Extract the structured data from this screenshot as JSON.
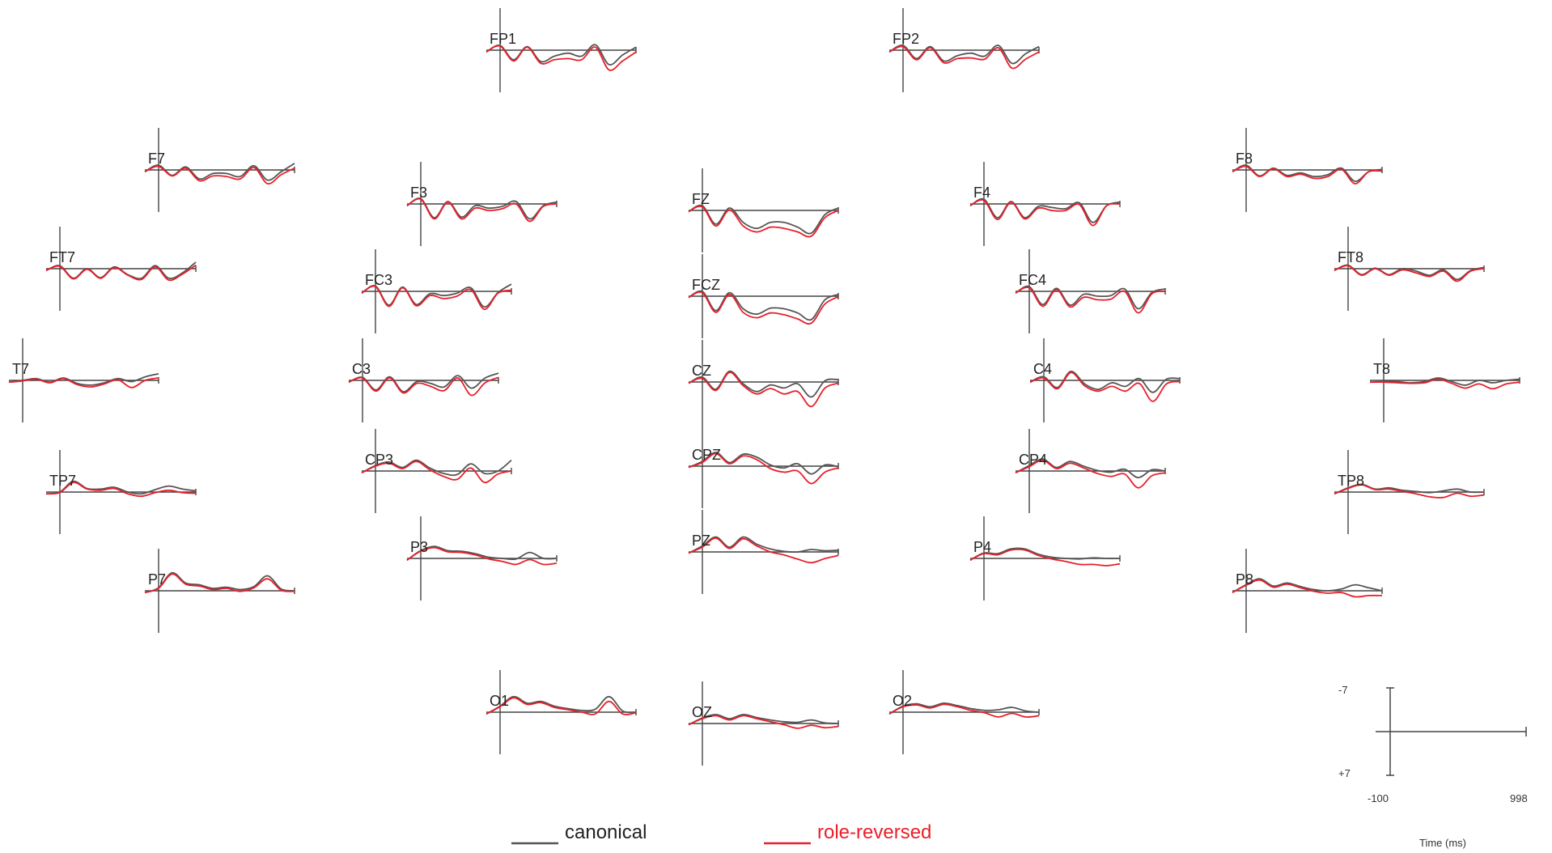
{
  "chart_data": {
    "type": "line",
    "title": "",
    "xlabel": "Time (ms)",
    "ylabel": "",
    "y_axis_inverted": true,
    "x_range": [
      -100,
      998
    ],
    "y_range": [
      -7,
      7
    ],
    "scale_bar": {
      "x_min_label": "-100",
      "x_max_label": "998",
      "y_neg_label": "-7",
      "y_pos_label": "+7",
      "x_title": "Time (ms)"
    },
    "legend": {
      "position": "bottom-center"
    },
    "series_styles": [
      {
        "name": "canonical",
        "color": "#555555"
      },
      {
        "name": "role-reversed",
        "color": "#e8202a"
      }
    ],
    "times": [
      -100,
      0,
      100,
      200,
      300,
      400,
      500,
      600,
      700,
      800,
      900,
      998
    ],
    "panels": [
      {
        "label": "FP1",
        "canonical": [
          0.3,
          -0.8,
          1.6,
          -0.6,
          1.9,
          1.0,
          0.5,
          1.0,
          -0.9,
          2.4,
          0.8,
          -0.5
        ],
        "role_reversed": [
          0.3,
          -0.7,
          1.8,
          -0.5,
          2.2,
          1.6,
          1.4,
          1.6,
          -0.5,
          3.3,
          1.8,
          0.3
        ]
      },
      {
        "label": "FP2",
        "canonical": [
          0.3,
          -0.8,
          1.4,
          -0.6,
          1.8,
          0.9,
          0.5,
          1.0,
          -0.8,
          2.2,
          0.6,
          -0.6
        ],
        "role_reversed": [
          0.3,
          -0.6,
          1.6,
          -0.4,
          2.1,
          1.4,
          1.3,
          1.5,
          -0.4,
          3.0,
          1.5,
          0.3
        ]
      },
      {
        "label": "F7",
        "canonical": [
          0.3,
          -0.8,
          0.9,
          -0.5,
          1.5,
          0.6,
          0.6,
          1.1,
          -0.7,
          1.7,
          0.3,
          -1.1
        ],
        "role_reversed": [
          0.3,
          -0.6,
          1.0,
          -0.3,
          1.8,
          1.0,
          1.1,
          1.5,
          -0.4,
          2.3,
          0.8,
          -0.3
        ]
      },
      {
        "label": "F3",
        "canonical": [
          0.3,
          -0.9,
          2.3,
          -0.4,
          2.2,
          0.3,
          0.7,
          0.4,
          -0.4,
          2.5,
          0.3,
          -0.3
        ],
        "role_reversed": [
          0.3,
          -0.8,
          2.5,
          -0.3,
          2.5,
          0.7,
          1.1,
          0.8,
          0.0,
          2.9,
          0.4,
          0.0
        ]
      },
      {
        "label": "FZ",
        "canonical": [
          0.2,
          -0.8,
          2.3,
          -0.4,
          2.0,
          3.0,
          2.0,
          2.0,
          2.8,
          3.8,
          0.7,
          -0.4
        ],
        "role_reversed": [
          0.2,
          -0.6,
          2.6,
          -0.1,
          2.6,
          3.6,
          2.8,
          3.0,
          3.6,
          4.3,
          1.2,
          0.0
        ]
      },
      {
        "label": "F4",
        "canonical": [
          0.3,
          -0.8,
          2.3,
          -0.4,
          2.3,
          0.4,
          0.6,
          0.8,
          -0.2,
          3.1,
          0.3,
          -0.3
        ],
        "role_reversed": [
          0.3,
          -0.6,
          2.6,
          -0.3,
          2.5,
          0.7,
          1.1,
          1.1,
          0.1,
          3.6,
          0.3,
          0.0
        ]
      },
      {
        "label": "F8",
        "canonical": [
          0.3,
          -0.8,
          1.0,
          -0.3,
          0.9,
          0.5,
          1.1,
          0.8,
          -0.3,
          1.9,
          0.3,
          -0.1
        ],
        "role_reversed": [
          0.3,
          -0.6,
          1.1,
          -0.2,
          1.1,
          0.7,
          1.4,
          1.1,
          -0.1,
          2.3,
          0.3,
          0.2
        ]
      },
      {
        "label": "FT7",
        "canonical": [
          0.3,
          -0.5,
          1.6,
          0.0,
          1.5,
          -0.3,
          1.0,
          1.6,
          -0.5,
          1.6,
          0.7,
          -1.1
        ],
        "role_reversed": [
          0.3,
          -0.4,
          1.7,
          0.1,
          1.6,
          -0.2,
          1.1,
          1.8,
          -0.3,
          1.9,
          0.9,
          -0.6
        ]
      },
      {
        "label": "FC3",
        "canonical": [
          0.3,
          -0.9,
          2.3,
          -0.7,
          2.2,
          0.4,
          0.7,
          0.3,
          -0.6,
          2.6,
          0.2,
          -1.2
        ],
        "role_reversed": [
          0.3,
          -0.8,
          2.5,
          -0.6,
          2.4,
          0.7,
          1.2,
          0.8,
          -0.3,
          3.0,
          0.3,
          -0.2
        ]
      },
      {
        "label": "FCZ",
        "canonical": [
          0.2,
          -0.8,
          2.4,
          -0.6,
          2.1,
          3.0,
          2.0,
          2.1,
          2.8,
          3.9,
          0.6,
          -0.3
        ],
        "role_reversed": [
          0.2,
          -0.6,
          2.7,
          -0.3,
          2.7,
          3.6,
          2.8,
          3.1,
          3.8,
          4.5,
          1.3,
          0.1
        ]
      },
      {
        "label": "FC4",
        "canonical": [
          0.3,
          -0.8,
          2.2,
          -0.5,
          2.3,
          0.5,
          0.8,
          0.7,
          -0.4,
          2.9,
          0.2,
          -0.4
        ],
        "role_reversed": [
          0.3,
          -0.6,
          2.5,
          -0.3,
          2.6,
          1.0,
          1.4,
          1.3,
          0.0,
          3.6,
          0.4,
          0.0
        ]
      },
      {
        "label": "FT8",
        "canonical": [
          0.3,
          -0.6,
          1.0,
          -0.1,
          1.0,
          0.0,
          0.4,
          1.1,
          0.2,
          1.8,
          0.3,
          -0.2
        ],
        "role_reversed": [
          0.3,
          -0.5,
          1.1,
          0.0,
          1.1,
          0.2,
          0.7,
          1.3,
          0.4,
          2.1,
          0.4,
          0.0
        ]
      },
      {
        "label": "T7",
        "canonical": [
          0.3,
          0.0,
          -0.3,
          0.3,
          -0.4,
          0.5,
          0.8,
          0.4,
          -0.3,
          0.2,
          -0.6,
          -1.1
        ],
        "role_reversed": [
          0.3,
          0.1,
          -0.2,
          0.4,
          -0.3,
          0.7,
          1.1,
          0.6,
          -0.1,
          1.2,
          0.0,
          -0.4
        ]
      },
      {
        "label": "C3",
        "canonical": [
          0.3,
          -0.5,
          1.6,
          -0.6,
          1.9,
          0.2,
          0.5,
          1.1,
          -0.8,
          1.3,
          -0.4,
          -1.2
        ],
        "role_reversed": [
          0.3,
          -0.4,
          1.8,
          -0.4,
          2.1,
          0.5,
          1.0,
          1.7,
          -0.4,
          2.5,
          0.4,
          -0.5
        ]
      },
      {
        "label": "CZ",
        "canonical": [
          0.2,
          -0.8,
          1.2,
          -1.8,
          0.3,
          1.6,
          0.5,
          1.0,
          0.3,
          2.5,
          -0.2,
          -0.4
        ],
        "role_reversed": [
          0.2,
          -0.6,
          1.4,
          -1.6,
          0.6,
          2.0,
          1.1,
          2.0,
          1.6,
          4.1,
          1.0,
          0.2
        ]
      },
      {
        "label": "C4",
        "canonical": [
          0.3,
          -0.6,
          1.2,
          -1.5,
          0.6,
          1.5,
          0.4,
          1.0,
          -0.3,
          2.0,
          -0.2,
          -0.3
        ],
        "role_reversed": [
          0.3,
          -0.4,
          1.4,
          -1.3,
          0.9,
          1.8,
          1.0,
          1.8,
          0.5,
          3.5,
          0.6,
          0.2
        ]
      },
      {
        "label": "T8",
        "canonical": [
          0.3,
          0.2,
          0.2,
          0.4,
          0.2,
          -0.4,
          0.2,
          0.8,
          0.0,
          0.4,
          0.0,
          -0.2
        ],
        "role_reversed": [
          0.3,
          0.3,
          0.4,
          0.5,
          0.4,
          -0.2,
          0.5,
          1.3,
          0.6,
          1.4,
          0.6,
          0.3
        ]
      },
      {
        "label": "TP7",
        "canonical": [
          0.3,
          0.0,
          -1.8,
          -0.6,
          -0.5,
          -0.8,
          0.0,
          0.3,
          -0.4,
          -1.0,
          -0.5,
          -0.2
        ],
        "role_reversed": [
          0.3,
          0.1,
          -1.6,
          -0.5,
          -0.3,
          -0.6,
          0.3,
          0.7,
          0.1,
          -0.3,
          0.1,
          0.2
        ]
      },
      {
        "label": "CP3",
        "canonical": [
          0.3,
          -0.9,
          -1.5,
          -0.6,
          -1.8,
          -0.5,
          0.4,
          0.6,
          -1.2,
          0.4,
          0.0,
          -1.8
        ],
        "role_reversed": [
          0.3,
          -0.8,
          -1.3,
          -0.4,
          -1.6,
          -0.2,
          0.9,
          1.4,
          -0.5,
          1.9,
          0.5,
          0.0
        ]
      },
      {
        "label": "CPZ",
        "canonical": [
          0.2,
          -0.8,
          -2.3,
          -0.6,
          -2.0,
          -1.5,
          -0.2,
          0.3,
          -0.4,
          1.3,
          -0.2,
          0.1
        ],
        "role_reversed": [
          0.2,
          -0.6,
          -2.1,
          -0.4,
          -1.7,
          -1.1,
          0.4,
          1.0,
          0.8,
          2.9,
          1.0,
          0.3
        ]
      },
      {
        "label": "CP4",
        "canonical": [
          0.3,
          -0.9,
          -2.0,
          -0.6,
          -1.6,
          -0.8,
          -0.1,
          0.2,
          -0.3,
          1.1,
          -0.2,
          0.0
        ],
        "role_reversed": [
          0.3,
          -0.7,
          -1.8,
          -0.4,
          -1.3,
          -0.5,
          0.4,
          0.9,
          0.5,
          2.8,
          0.8,
          0.3
        ]
      },
      {
        "label": "TP8",
        "canonical": [
          0.3,
          -0.7,
          -1.3,
          -0.5,
          -0.7,
          -0.3,
          -0.1,
          0.1,
          -0.2,
          -0.5,
          0.0,
          0.0
        ],
        "role_reversed": [
          0.3,
          -0.6,
          -1.2,
          -0.4,
          -0.5,
          -0.1,
          0.3,
          0.8,
          0.9,
          0.2,
          0.7,
          0.5
        ]
      },
      {
        "label": "P7",
        "canonical": [
          0.3,
          -0.5,
          -3.0,
          -1.3,
          -1.0,
          -0.4,
          -0.6,
          -0.2,
          -0.7,
          -2.5,
          -0.3,
          0.0
        ],
        "role_reversed": [
          0.3,
          -0.4,
          -2.8,
          -1.1,
          -0.8,
          -0.2,
          -0.4,
          0.1,
          -0.5,
          -2.0,
          -0.1,
          0.1
        ]
      },
      {
        "label": "P3",
        "canonical": [
          0.3,
          -1.3,
          -2.0,
          -1.3,
          -1.2,
          -0.8,
          -0.2,
          0.0,
          0.1,
          -1.0,
          0.0,
          0.0
        ],
        "role_reversed": [
          0.3,
          -1.2,
          -1.8,
          -1.1,
          -1.0,
          -0.6,
          0.1,
          0.5,
          1.0,
          0.2,
          1.0,
          0.8
        ]
      },
      {
        "label": "PZ",
        "canonical": [
          0.2,
          -1.0,
          -2.5,
          -0.8,
          -2.5,
          -1.3,
          -0.5,
          -0.1,
          0.0,
          -0.4,
          -0.2,
          -0.3
        ],
        "role_reversed": [
          0.2,
          -0.8,
          -2.3,
          -0.6,
          -2.2,
          -1.0,
          0.0,
          0.5,
          1.2,
          1.8,
          1.1,
          0.6
        ]
      },
      {
        "label": "P4",
        "canonical": [
          0.3,
          -0.9,
          -0.8,
          -1.6,
          -1.6,
          -0.7,
          -0.2,
          0.0,
          0.1,
          -0.1,
          0.0,
          0.0
        ],
        "role_reversed": [
          0.3,
          -0.8,
          -0.6,
          -1.4,
          -1.4,
          -0.5,
          0.1,
          0.5,
          1.0,
          1.0,
          1.2,
          0.9
        ]
      },
      {
        "label": "P8",
        "canonical": [
          0.3,
          -1.0,
          -2.0,
          -0.8,
          -1.3,
          -0.7,
          -0.2,
          0.0,
          -0.3,
          -1.0,
          -0.5,
          0.0
        ],
        "role_reversed": [
          0.3,
          -0.9,
          -1.8,
          -0.6,
          -1.1,
          -0.5,
          0.1,
          0.4,
          0.3,
          1.0,
          0.8,
          0.8
        ]
      },
      {
        "label": "O1",
        "canonical": [
          0.3,
          -1.0,
          -2.6,
          -1.5,
          -1.8,
          -1.0,
          -0.6,
          -0.3,
          -0.5,
          -2.6,
          -0.2,
          0.0
        ],
        "role_reversed": [
          0.3,
          -0.9,
          -2.4,
          -1.3,
          -1.6,
          -0.8,
          -0.4,
          0.0,
          0.3,
          -1.8,
          0.3,
          0.1
        ]
      },
      {
        "label": "OZ",
        "canonical": [
          0.2,
          -0.9,
          -1.5,
          -0.8,
          -1.5,
          -1.0,
          -0.6,
          -0.3,
          -0.2,
          -0.6,
          -0.1,
          0.0
        ],
        "role_reversed": [
          0.2,
          -0.8,
          -1.3,
          -0.6,
          -1.3,
          -0.8,
          -0.3,
          0.2,
          0.8,
          0.3,
          0.7,
          0.5
        ]
      },
      {
        "label": "O2",
        "canonical": [
          0.3,
          -1.0,
          -1.4,
          -0.9,
          -1.5,
          -1.1,
          -0.6,
          -0.3,
          -0.4,
          -0.8,
          -0.2,
          0.0
        ],
        "role_reversed": [
          0.3,
          -0.9,
          -1.2,
          -0.7,
          -1.3,
          -0.9,
          -0.3,
          0.1,
          0.8,
          0.2,
          0.8,
          0.6
        ]
      }
    ]
  }
}
